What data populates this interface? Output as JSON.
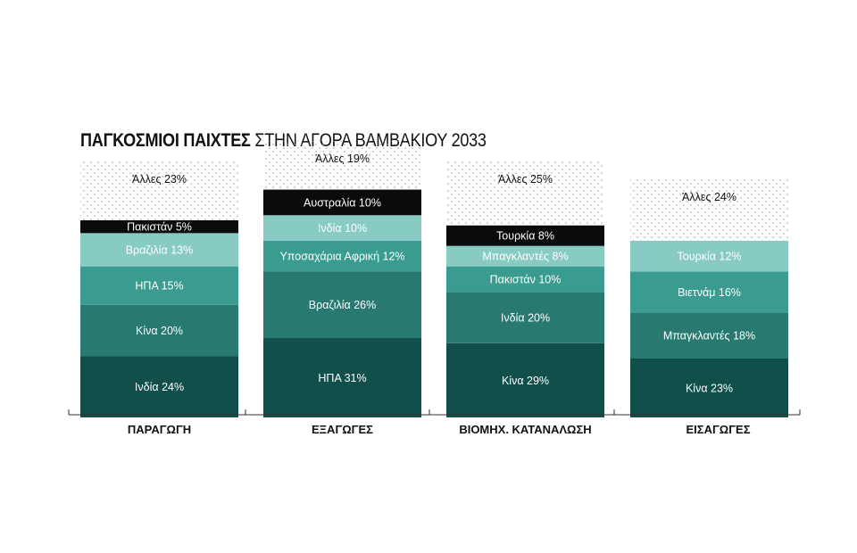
{
  "title": {
    "bold": "ΠΑΓΚΟΣΜΙΟΙ ΠΑΙΧΤΕΣ",
    "rest": "ΣΤΗΝ ΑΓΟΡΑ ΒΑΜΒΑΚΙΟΥ 2033"
  },
  "colors": {
    "shade_1": "#114f4a",
    "shade_2": "#287a71",
    "shade_3": "#3a9b90",
    "shade_4": "#88cbc3",
    "black": "#0b0b0b",
    "dots": "#9a9a9a"
  },
  "chart_data": {
    "type": "bar",
    "stacked": true,
    "unit": "%",
    "categories": [
      {
        "name": "ΠΑΡΑΓΩΓΗ",
        "segments": [
          {
            "label": "Ινδία 24%",
            "value": 24,
            "style": "shade_1"
          },
          {
            "label": "Κίνα 20%",
            "value": 20,
            "style": "shade_2"
          },
          {
            "label": "ΗΠΑ 15%",
            "value": 15,
            "style": "shade_3"
          },
          {
            "label": "Βραζιλία 13%",
            "value": 13,
            "style": "shade_4"
          },
          {
            "label": "Πακιστάν 5%",
            "value": 5,
            "style": "black"
          },
          {
            "label": "Άλλες 23%",
            "value": 23,
            "style": "dots"
          }
        ]
      },
      {
        "name": "ΕΞΑΓΩΓΕΣ",
        "segments": [
          {
            "label": "ΗΠΑ  31%",
            "value": 31,
            "style": "shade_1"
          },
          {
            "label": "Βραζιλία 26%",
            "value": 26,
            "style": "shade_2"
          },
          {
            "label": "Υποσαχάρια Αφρική 12%",
            "value": 12,
            "style": "shade_3"
          },
          {
            "label": "Ινδία 10%",
            "value": 10,
            "style": "shade_4"
          },
          {
            "label": "Αυστραλία 10%",
            "value": 10,
            "style": "black"
          },
          {
            "label": "Άλλες 19%",
            "value": 19,
            "style": "dots"
          }
        ]
      },
      {
        "name": "ΒΙΟΜΗΧ. ΚΑΤΑΝΑΛΩΣΗ",
        "segments": [
          {
            "label": "Κίνα 29%",
            "value": 29,
            "style": "shade_1"
          },
          {
            "label": "Ινδία  20%",
            "value": 20,
            "style": "shade_2"
          },
          {
            "label": "Πακιστάν 10%",
            "value": 10,
            "style": "shade_3"
          },
          {
            "label": "Μπαγκλαντές  8%",
            "value": 8,
            "style": "shade_4"
          },
          {
            "label": "Τουρκία 8%",
            "value": 8,
            "style": "black"
          },
          {
            "label": "Άλλες  25%",
            "value": 25,
            "style": "dots"
          }
        ]
      },
      {
        "name": "ΕΙΣΑΓΩΓΕΣ",
        "segments": [
          {
            "label": "Κίνα 23%",
            "value": 23,
            "style": "shade_1"
          },
          {
            "label": "Μπαγκλαντές  18%",
            "value": 18,
            "style": "shade_2"
          },
          {
            "label": "Βιετνάμ 16%",
            "value": 16,
            "style": "shade_3"
          },
          {
            "label": "Τουρκία 12%",
            "value": 12,
            "style": "shade_4"
          },
          {
            "label": "Άλλες  24%",
            "value": 24,
            "style": "dots"
          }
        ]
      }
    ]
  }
}
